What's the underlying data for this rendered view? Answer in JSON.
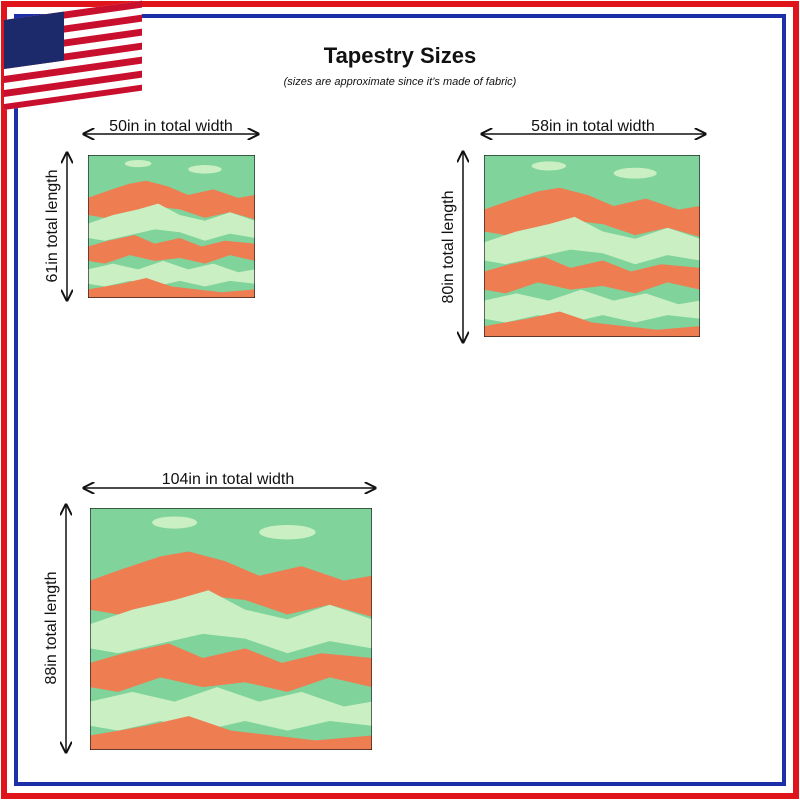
{
  "header": {
    "title": "Tapestry Sizes",
    "subtitle": "(sizes are approximate since it’s made of fabric)"
  },
  "sizes": [
    {
      "width": "50in in total width",
      "length": "61in total length"
    },
    {
      "width": "58in in total width",
      "length": "80in total length"
    },
    {
      "width": "104in in total width",
      "length": "88in total length"
    }
  ]
}
